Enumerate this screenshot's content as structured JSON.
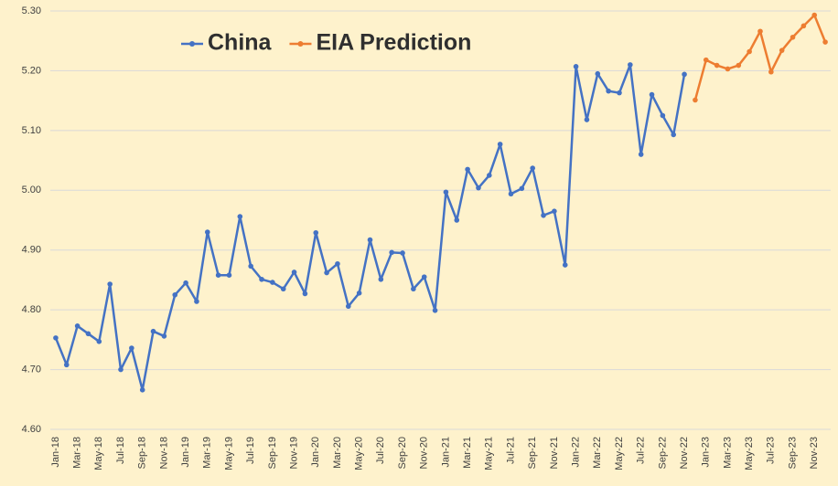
{
  "chart_data": {
    "type": "line",
    "categories": [
      "Jan-18",
      null,
      "Mar-18",
      null,
      "May-18",
      null,
      "Jul-18",
      null,
      "Sep-18",
      null,
      "Nov-18",
      null,
      "Jan-19",
      null,
      "Mar-19",
      null,
      "May-19",
      null,
      "Jul-19",
      null,
      "Sep-19",
      null,
      "Nov-19",
      null,
      "Jan-20",
      null,
      "Mar-20",
      null,
      "May-20",
      null,
      "Jul-20",
      null,
      "Sep-20",
      null,
      "Nov-20",
      null,
      "Jan-21",
      null,
      "Mar-21",
      null,
      "May-21",
      null,
      "Jul-21",
      null,
      "Sep-21",
      null,
      "Nov-21",
      null,
      "Jan-22",
      null,
      "Mar-22",
      null,
      "May-22",
      null,
      "Jul-22",
      null,
      "Sep-22",
      null,
      "Nov-22",
      null,
      "Jan-23",
      null,
      "Mar-23",
      null,
      "May-23",
      null,
      "Jul-23",
      null,
      "Sep-23",
      null,
      "Nov-23",
      null
    ],
    "series": [
      {
        "name": "China",
        "color": "#4472c4",
        "values": [
          4.753,
          4.708,
          4.773,
          4.76,
          4.747,
          4.843,
          4.7,
          4.736,
          4.666,
          4.764,
          4.756,
          4.825,
          4.845,
          4.814,
          4.93,
          4.858,
          4.858,
          4.956,
          4.873,
          4.851,
          4.846,
          4.835,
          4.863,
          4.827,
          4.929,
          4.862,
          4.877,
          4.806,
          4.828,
          4.917,
          4.851,
          4.896,
          4.895,
          4.835,
          4.855,
          4.799,
          4.997,
          4.95,
          5.035,
          5.004,
          5.025,
          5.077,
          4.994,
          5.003,
          5.037,
          4.958,
          4.965,
          4.875,
          5.207,
          5.118,
          5.195,
          5.166,
          5.163,
          5.21,
          5.06,
          5.16,
          5.125,
          5.093,
          5.194,
          null,
          null,
          null,
          null,
          null,
          null,
          null,
          null,
          null,
          null,
          null,
          null,
          null
        ]
      },
      {
        "name": "EIA Prediction",
        "color": "#ed7d31",
        "values": [
          null,
          null,
          null,
          null,
          null,
          null,
          null,
          null,
          null,
          null,
          null,
          null,
          null,
          null,
          null,
          null,
          null,
          null,
          null,
          null,
          null,
          null,
          null,
          null,
          null,
          null,
          null,
          null,
          null,
          null,
          null,
          null,
          null,
          null,
          null,
          null,
          null,
          null,
          null,
          null,
          null,
          null,
          null,
          null,
          null,
          null,
          null,
          null,
          null,
          null,
          null,
          null,
          null,
          null,
          null,
          null,
          null,
          null,
          null,
          5.151,
          5.218,
          5.209,
          5.203,
          5.209,
          5.232,
          5.266,
          5.198,
          5.234,
          5.256,
          5.275,
          5.293,
          5.248
        ]
      }
    ],
    "ylim": [
      4.6,
      5.3
    ],
    "yticks": [
      {
        "value": 4.6,
        "label": "4.60"
      },
      {
        "value": 4.7,
        "label": "4.70"
      },
      {
        "value": 4.8,
        "label": "4.80"
      },
      {
        "value": 4.9,
        "label": "4.90"
      },
      {
        "value": 5.0,
        "label": "5.00"
      },
      {
        "value": 5.1,
        "label": "5.10"
      },
      {
        "value": 5.2,
        "label": "5.20"
      },
      {
        "value": 5.3,
        "label": "5.30"
      }
    ],
    "grid": true,
    "legend": "top-left"
  }
}
